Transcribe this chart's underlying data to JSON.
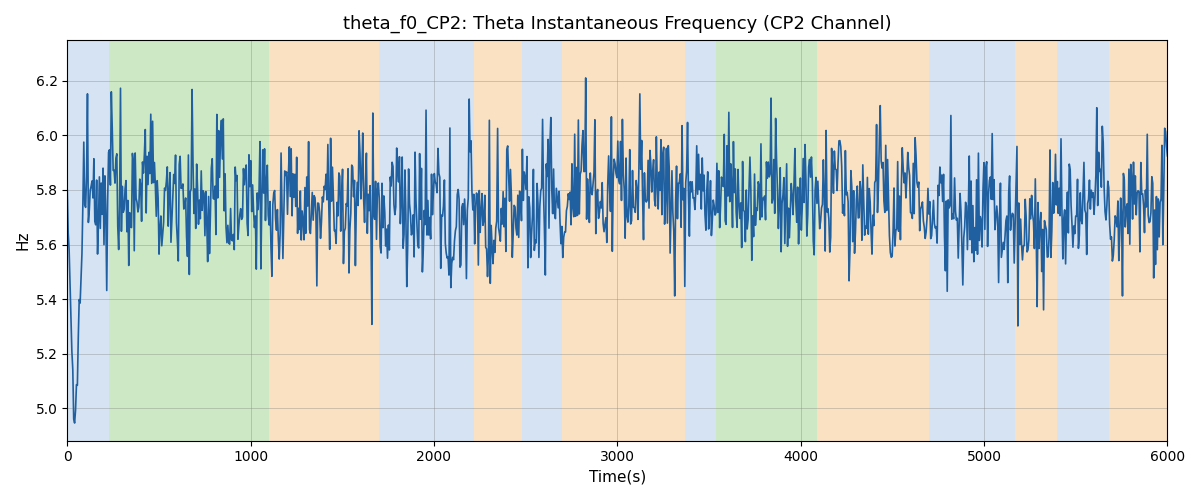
{
  "title": "theta_f0_CP2: Theta Instantaneous Frequency (CP2 Channel)",
  "xlabel": "Time(s)",
  "ylabel": "Hz",
  "xlim": [
    0,
    6000
  ],
  "ylim": [
    4.88,
    6.35
  ],
  "grid": true,
  "line_color": "#2060a0",
  "line_width": 1.2,
  "bg_regions": [
    {
      "xmin": 0,
      "xmax": 230,
      "color": "#adc8e6",
      "alpha": 0.5
    },
    {
      "xmin": 230,
      "xmax": 1100,
      "color": "#90cc80",
      "alpha": 0.45
    },
    {
      "xmin": 1100,
      "xmax": 1700,
      "color": "#f5c990",
      "alpha": 0.55
    },
    {
      "xmin": 1700,
      "xmax": 2220,
      "color": "#adc8e6",
      "alpha": 0.5
    },
    {
      "xmin": 2220,
      "xmax": 2480,
      "color": "#f5c990",
      "alpha": 0.55
    },
    {
      "xmin": 2480,
      "xmax": 2700,
      "color": "#adc8e6",
      "alpha": 0.5
    },
    {
      "xmin": 2700,
      "xmax": 3370,
      "color": "#f5c990",
      "alpha": 0.55
    },
    {
      "xmin": 3370,
      "xmax": 3540,
      "color": "#adc8e6",
      "alpha": 0.5
    },
    {
      "xmin": 3540,
      "xmax": 4090,
      "color": "#90cc80",
      "alpha": 0.45
    },
    {
      "xmin": 4090,
      "xmax": 4700,
      "color": "#f5c990",
      "alpha": 0.55
    },
    {
      "xmin": 4700,
      "xmax": 5170,
      "color": "#adc8e6",
      "alpha": 0.5
    },
    {
      "xmin": 5170,
      "xmax": 5400,
      "color": "#f5c990",
      "alpha": 0.55
    },
    {
      "xmin": 5400,
      "xmax": 5680,
      "color": "#adc8e6",
      "alpha": 0.5
    },
    {
      "xmin": 5680,
      "xmax": 6000,
      "color": "#f5c990",
      "alpha": 0.55
    }
  ],
  "seed": 12345,
  "n_points": 1200,
  "base_freq": 5.76,
  "noise_std": 0.11,
  "background_color": "#f8f8f8"
}
